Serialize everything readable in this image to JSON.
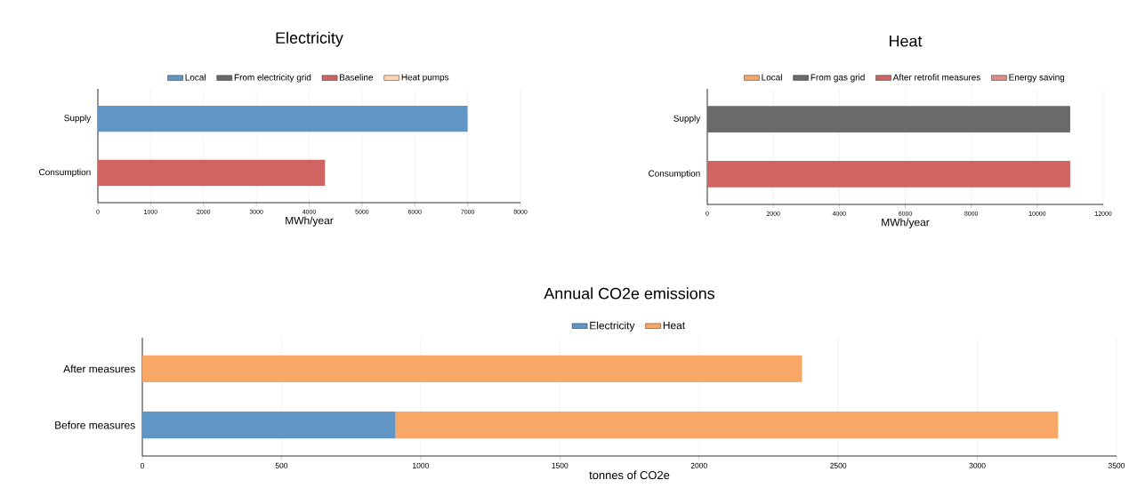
{
  "chart_data": [
    {
      "type": "bar",
      "orientation": "horizontal",
      "stacked": true,
      "title": "Electricity",
      "xlabel": "MWh/year",
      "categories": [
        "Supply",
        "Consumption"
      ],
      "series": [
        {
          "name": "Local",
          "color": "#5f96c5",
          "values": [
            7000,
            null
          ]
        },
        {
          "name": "From electricity grid",
          "color": "#6a6a6a",
          "values": [
            null,
            null
          ]
        },
        {
          "name": "Baseline",
          "color": "#cf6462",
          "values": [
            null,
            4300
          ]
        },
        {
          "name": "Heat pumps",
          "color": "#fcd5b5",
          "values": [
            null,
            null
          ]
        }
      ],
      "xlim": [
        0,
        8000
      ],
      "xticks": [
        0,
        1000,
        2000,
        3000,
        4000,
        5000,
        6000,
        7000,
        8000
      ],
      "grid": "x",
      "legend": "top"
    },
    {
      "type": "bar",
      "orientation": "horizontal",
      "stacked": true,
      "title": "Heat",
      "xlabel": "MWh/year",
      "categories": [
        "Supply",
        "Consumption"
      ],
      "series": [
        {
          "name": "Local",
          "color": "#f9a766",
          "values": [
            null,
            null
          ]
        },
        {
          "name": "From gas grid",
          "color": "#6a6a6a",
          "values": [
            11000,
            null
          ]
        },
        {
          "name": "After retrofit measures",
          "color": "#cf6462",
          "values": [
            null,
            11000
          ]
        },
        {
          "name": "Energy saving",
          "color": "#e08a8a",
          "values": [
            null,
            null
          ]
        }
      ],
      "xlim": [
        0,
        12000
      ],
      "xticks": [
        0,
        2000,
        4000,
        6000,
        8000,
        10000,
        12000
      ],
      "grid": "x",
      "legend": "top"
    },
    {
      "type": "bar",
      "orientation": "horizontal",
      "stacked": true,
      "title": "Annual CO2e emissions",
      "xlabel": "tonnes of CO2e",
      "categories": [
        "After measures",
        "Before measures"
      ],
      "series": [
        {
          "name": "Electricity",
          "color": "#5f96c5",
          "values": [
            null,
            910
          ]
        },
        {
          "name": "Heat",
          "color": "#f9a766",
          "values": [
            2370,
            2380
          ]
        }
      ],
      "xlim": [
        0,
        3500
      ],
      "xticks": [
        0,
        500,
        1000,
        1500,
        2000,
        2500,
        3000,
        3500
      ],
      "grid": "x",
      "legend": "top"
    }
  ]
}
